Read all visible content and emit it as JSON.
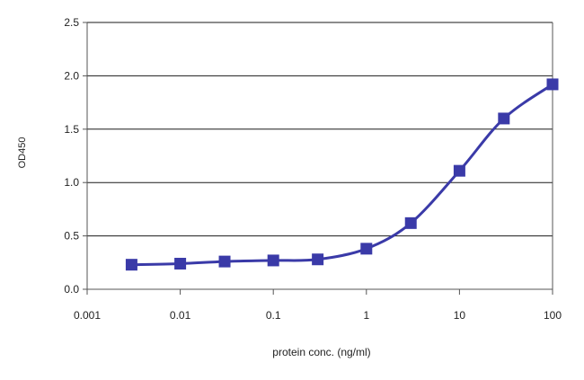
{
  "chart_data": {
    "type": "line",
    "title": "",
    "xlabel": "protein conc. (ng/ml)",
    "ylabel": "OD450",
    "x_scale": "log",
    "xlim": [
      0.001,
      100
    ],
    "ylim": [
      0,
      2.5
    ],
    "x_ticks": [
      0.001,
      0.01,
      0.1,
      1,
      10,
      100
    ],
    "x_tick_labels": [
      "0.001",
      "0.01",
      "0.1",
      "1",
      "10",
      "100"
    ],
    "y_ticks": [
      0,
      0.5,
      1.0,
      1.5,
      2.0,
      2.5
    ],
    "y_tick_labels": [
      "0.0",
      "0.5",
      "1.0",
      "1.5",
      "2.0",
      "2.5"
    ],
    "grid": "horizontal",
    "legend": "none",
    "series": [
      {
        "color": "#3a3aa8",
        "marker": "square",
        "x": [
          0.003,
          0.01,
          0.03,
          0.1,
          0.3,
          1,
          3,
          10,
          30,
          100
        ],
        "y": [
          0.23,
          0.24,
          0.26,
          0.27,
          0.28,
          0.38,
          0.62,
          1.11,
          1.6,
          1.92
        ]
      }
    ]
  }
}
